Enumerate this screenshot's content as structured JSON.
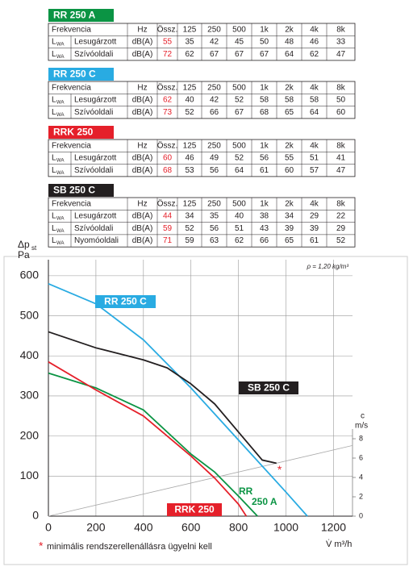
{
  "tables": [
    {
      "title": "RR 250 A",
      "title_color": "#0b9444",
      "header": [
        "Frekvencia",
        "Hz",
        "Össz.",
        "125",
        "250",
        "500",
        "1k",
        "2k",
        "4k",
        "8k"
      ],
      "rows": [
        {
          "symbol": "L",
          "sub": "WA",
          "name": "Lesugárzott",
          "unit": "dB(A)",
          "values": [
            55,
            35,
            42,
            45,
            50,
            48,
            46,
            33
          ]
        },
        {
          "symbol": "L",
          "sub": "WA",
          "name": "Szívóoldali",
          "unit": "dB(A)",
          "values": [
            72,
            62,
            67,
            67,
            67,
            64,
            62,
            47
          ]
        }
      ]
    },
    {
      "title": "RR 250 C",
      "title_color": "#29abe2",
      "header": [
        "Frekvencia",
        "Hz",
        "Össz.",
        "125",
        "250",
        "500",
        "1k",
        "2k",
        "4k",
        "8k"
      ],
      "rows": [
        {
          "symbol": "L",
          "sub": "WA",
          "name": "Lesugárzott",
          "unit": "dB(A)",
          "values": [
            62,
            40,
            42,
            52,
            58,
            58,
            58,
            50
          ]
        },
        {
          "symbol": "L",
          "sub": "WA",
          "name": "Szívóoldali",
          "unit": "dB(A)",
          "values": [
            73,
            52,
            66,
            67,
            68,
            65,
            64,
            60
          ]
        }
      ]
    },
    {
      "title": "RRK 250",
      "title_color": "#e5202a",
      "header": [
        "Frekvencia",
        "Hz",
        "Össz.",
        "125",
        "250",
        "500",
        "1k",
        "2k",
        "4k",
        "8k"
      ],
      "rows": [
        {
          "symbol": "L",
          "sub": "WA",
          "name": "Lesugárzott",
          "unit": "dB(A)",
          "values": [
            60,
            46,
            49,
            52,
            56,
            55,
            51,
            41
          ]
        },
        {
          "symbol": "L",
          "sub": "WA",
          "name": "Szívóoldali",
          "unit": "dB(A)",
          "values": [
            68,
            53,
            56,
            64,
            61,
            60,
            57,
            47
          ]
        }
      ]
    },
    {
      "title": "SB 250 C",
      "title_color": "#231f20",
      "header": [
        "Frekvencia",
        "Hz",
        "Össz.",
        "125",
        "250",
        "500",
        "1k",
        "2k",
        "4k",
        "8k"
      ],
      "rows": [
        {
          "symbol": "L",
          "sub": "WA",
          "name": "Lesugárzott",
          "unit": "dB(A)",
          "values": [
            44,
            34,
            35,
            40,
            38,
            34,
            29,
            22
          ]
        },
        {
          "symbol": "L",
          "sub": "WA",
          "name": "Szívóoldali",
          "unit": "dB(A)",
          "values": [
            59,
            52,
            56,
            51,
            43,
            39,
            39,
            29
          ]
        },
        {
          "symbol": "L",
          "sub": "WA",
          "name": "Nyomóoldali",
          "unit": "dB(A)",
          "values": [
            71,
            59,
            63,
            62,
            66,
            65,
            61,
            52
          ]
        }
      ]
    }
  ],
  "chart_data": {
    "type": "line",
    "y_label": {
      "symbol": "Δp",
      "sub": "st",
      "unit": "Pa"
    },
    "x_label": "V̇  m³/h",
    "y2_label": {
      "symbol": "c",
      "unit": "m/s"
    },
    "annotation": "ρ = 1,20 kg/m³",
    "xlim": [
      0,
      1280
    ],
    "xticks": [
      0,
      200,
      400,
      600,
      800,
      1000,
      1200
    ],
    "ylim": [
      0,
      640
    ],
    "yticks": [
      0,
      100,
      200,
      300,
      400,
      500,
      600
    ],
    "y2lim": [
      0,
      26.5
    ],
    "y2ticks": [
      0,
      2,
      4,
      6,
      8
    ],
    "grid": true,
    "series": [
      {
        "name": "RR 250 C",
        "color": "#29abe2",
        "x": [
          0,
          200,
          400,
          600,
          800,
          1000,
          1090
        ],
        "values": [
          580,
          530,
          440,
          320,
          190,
          60,
          0
        ]
      },
      {
        "name": "SB 250 C",
        "color": "#231f20",
        "x": [
          0,
          200,
          400,
          500,
          600,
          700,
          800,
          900,
          960
        ],
        "values": [
          460,
          420,
          390,
          370,
          330,
          280,
          210,
          140,
          132
        ]
      },
      {
        "name": "RR 250 A",
        "color": "#0b9444",
        "x": [
          0,
          200,
          400,
          600,
          700,
          800,
          880
        ],
        "values": [
          357,
          320,
          265,
          155,
          110,
          50,
          0
        ]
      },
      {
        "name": "RRK 250",
        "color": "#e5202a",
        "x": [
          0,
          200,
          400,
          600,
          700,
          800,
          833
        ],
        "values": [
          385,
          315,
          250,
          150,
          95,
          30,
          0
        ]
      }
    ],
    "velocity_line": {
      "axis": "y2",
      "color": "#aaaaaa",
      "x": [
        0,
        1280
      ],
      "values": [
        0,
        7.3
      ]
    },
    "marker": {
      "text": "*",
      "x": 973,
      "y": 120
    }
  },
  "footnote": {
    "mark": "*",
    "text": "minimális rendszerellenállásra ügyelni kell"
  }
}
